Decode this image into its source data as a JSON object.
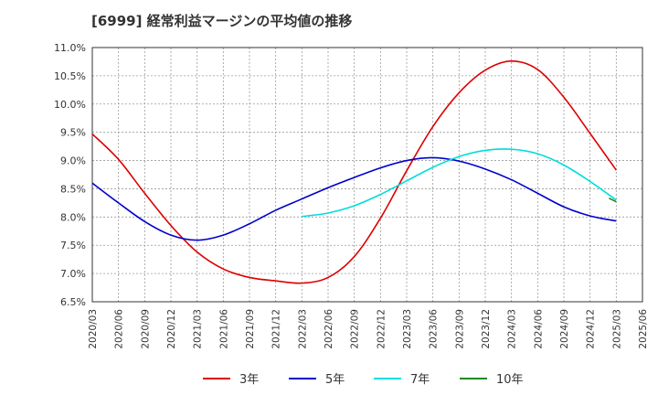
{
  "chart_data": {
    "type": "line",
    "title": "[6999]  経常利益マージンの平均値の推移",
    "xlabel": "",
    "ylabel": "",
    "ylim": [
      6.5,
      11.0
    ],
    "yticks": [
      "6.5%",
      "7.0%",
      "7.5%",
      "8.0%",
      "8.5%",
      "9.0%",
      "9.5%",
      "10.0%",
      "10.5%",
      "11.0%"
    ],
    "x_categories": [
      "2020/03",
      "2020/06",
      "2020/09",
      "2020/12",
      "2021/03",
      "2021/06",
      "2021/09",
      "2021/12",
      "2022/03",
      "2022/06",
      "2022/09",
      "2022/12",
      "2023/03",
      "2023/06",
      "2023/09",
      "2023/12",
      "2024/03",
      "2024/06",
      "2024/09",
      "2024/12",
      "2025/03",
      "2025/06"
    ],
    "grid": true,
    "legend_position": "bottom",
    "series": [
      {
        "name": "3年",
        "color": "#dd0000",
        "values": [
          9.47,
          9.02,
          8.42,
          7.85,
          7.38,
          7.08,
          6.93,
          6.87,
          6.83,
          6.93,
          7.3,
          7.98,
          8.82,
          9.6,
          10.2,
          10.6,
          10.76,
          10.61,
          10.12,
          9.48,
          8.83,
          null
        ]
      },
      {
        "name": "5年",
        "color": "#0000cc",
        "values": [
          8.6,
          8.25,
          7.92,
          7.68,
          7.59,
          7.68,
          7.88,
          8.12,
          8.32,
          8.52,
          8.7,
          8.87,
          9.0,
          9.05,
          8.99,
          8.85,
          8.66,
          8.42,
          8.18,
          8.02,
          7.93,
          null
        ]
      },
      {
        "name": "7年",
        "color": "#00dddd",
        "values": [
          null,
          null,
          null,
          null,
          null,
          null,
          null,
          null,
          8.01,
          8.07,
          8.2,
          8.4,
          8.64,
          8.88,
          9.07,
          9.18,
          9.2,
          9.12,
          8.92,
          8.63,
          8.3,
          null
        ]
      },
      {
        "name": "10年",
        "color": "#228822",
        "values": [
          null,
          null,
          null,
          null,
          null,
          null,
          null,
          null,
          null,
          null,
          null,
          null,
          null,
          null,
          null,
          null,
          null,
          null,
          null,
          null,
          8.27,
          null
        ]
      }
    ]
  }
}
